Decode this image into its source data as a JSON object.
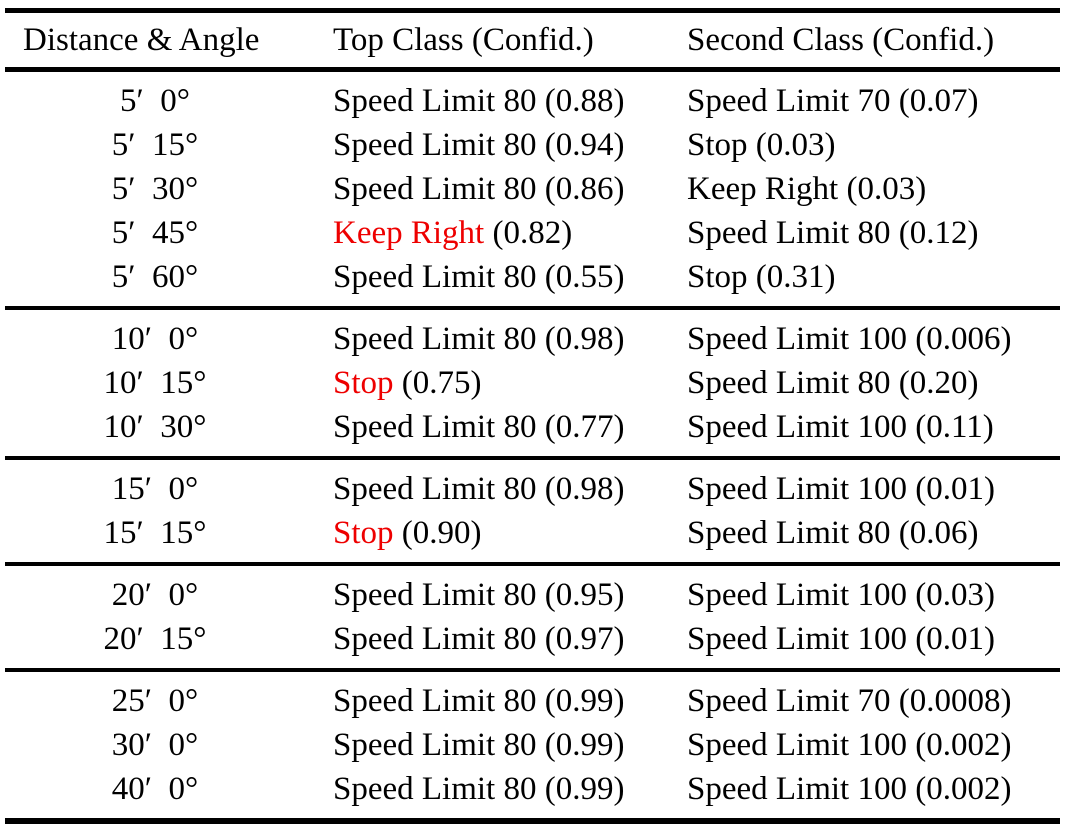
{
  "colors": {
    "background": "#ffffff",
    "text": "#000000",
    "rule": "#000000",
    "highlight_red": "#ee0000"
  },
  "table": {
    "columns": [
      "Distance & Angle",
      "Top Class (Confid.)",
      "Second Class (Confid.)"
    ],
    "groups": [
      {
        "rows": [
          {
            "distance": "5′  0°",
            "top_class": "Speed Limit 80",
            "top_conf": "(0.88)",
            "top_red": false,
            "second_class": "Speed Limit 70",
            "second_conf": "(0.07)"
          },
          {
            "distance": "5′  15°",
            "top_class": "Speed Limit 80",
            "top_conf": "(0.94)",
            "top_red": false,
            "second_class": "Stop",
            "second_conf": "(0.03)"
          },
          {
            "distance": "5′  30°",
            "top_class": "Speed Limit 80",
            "top_conf": "(0.86)",
            "top_red": false,
            "second_class": "Keep Right",
            "second_conf": "(0.03)"
          },
          {
            "distance": "5′  45°",
            "top_class": "Keep Right",
            "top_conf": "(0.82)",
            "top_red": true,
            "second_class": "Speed Limit 80",
            "second_conf": "(0.12)"
          },
          {
            "distance": "5′  60°",
            "top_class": "Speed Limit 80",
            "top_conf": "(0.55)",
            "top_red": false,
            "second_class": "Stop",
            "second_conf": "(0.31)"
          }
        ]
      },
      {
        "rows": [
          {
            "distance": "10′  0°",
            "top_class": "Speed Limit 80",
            "top_conf": "(0.98)",
            "top_red": false,
            "second_class": "Speed Limit 100",
            "second_conf": "(0.006)"
          },
          {
            "distance": "10′  15°",
            "top_class": "Stop",
            "top_conf": "(0.75)",
            "top_red": true,
            "second_class": "Speed Limit 80",
            "second_conf": "(0.20)"
          },
          {
            "distance": "10′  30°",
            "top_class": "Speed Limit 80",
            "top_conf": "(0.77)",
            "top_red": false,
            "second_class": "Speed Limit 100",
            "second_conf": "(0.11)"
          }
        ]
      },
      {
        "rows": [
          {
            "distance": "15′  0°",
            "top_class": "Speed Limit 80",
            "top_conf": "(0.98)",
            "top_red": false,
            "second_class": "Speed Limit 100",
            "second_conf": "(0.01)"
          },
          {
            "distance": "15′  15°",
            "top_class": "Stop",
            "top_conf": "(0.90)",
            "top_red": true,
            "second_class": "Speed Limit 80",
            "second_conf": "(0.06)"
          }
        ]
      },
      {
        "rows": [
          {
            "distance": "20′  0°",
            "top_class": "Speed Limit 80",
            "top_conf": "(0.95)",
            "top_red": false,
            "second_class": "Speed Limit 100",
            "second_conf": "(0.03)"
          },
          {
            "distance": "20′  15°",
            "top_class": "Speed Limit 80",
            "top_conf": "(0.97)",
            "top_red": false,
            "second_class": "Speed Limit 100",
            "second_conf": "(0.01)"
          }
        ]
      },
      {
        "rows": [
          {
            "distance": "25′  0°",
            "top_class": "Speed Limit 80",
            "top_conf": "(0.99)",
            "top_red": false,
            "second_class": "Speed Limit 70",
            "second_conf": "(0.0008)"
          },
          {
            "distance": "30′  0°",
            "top_class": "Speed Limit 80",
            "top_conf": "(0.99)",
            "top_red": false,
            "second_class": "Speed Limit 100",
            "second_conf": "(0.002)"
          },
          {
            "distance": "40′  0°",
            "top_class": "Speed Limit 80",
            "top_conf": "(0.99)",
            "top_red": false,
            "second_class": "Speed Limit 100",
            "second_conf": "(0.002)"
          }
        ]
      }
    ]
  }
}
